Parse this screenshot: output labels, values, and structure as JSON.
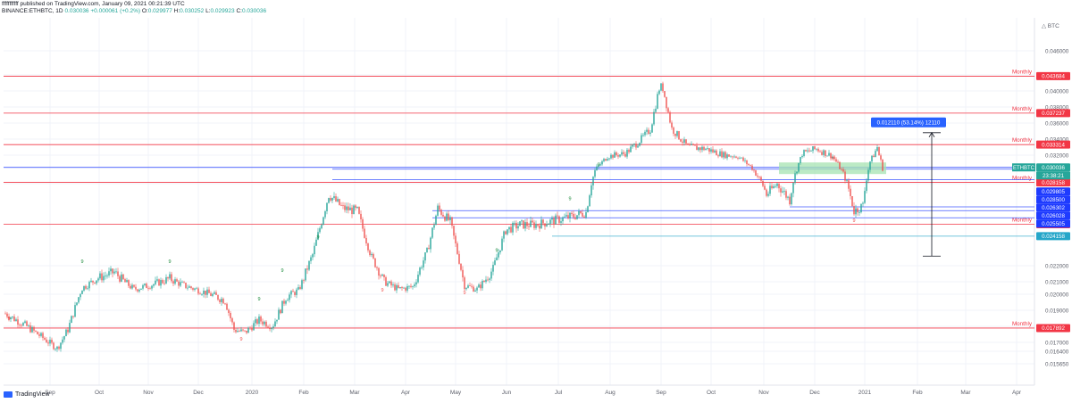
{
  "header": {
    "line1": "fffffffffff published on TradingView.com, January 09, 2021 00:21:39 UTC",
    "symbol": "BINANCE:ETHBTC, 1D",
    "price": "0.030036",
    "change": "+0.000061 (+0.2%)",
    "o_label": "O:",
    "o": "0.029977",
    "h_label": "H:",
    "h": "0.030252",
    "l_label": "L:",
    "l": "0.029923",
    "c_label": "C:",
    "c": "0.030036"
  },
  "footer": {
    "brand": "TradingView"
  },
  "colors": {
    "up": "#26a69a",
    "down": "#ef5350",
    "level": "#f23645",
    "blue_level": "#1e3bff",
    "cyan_level": "#26a6c9",
    "accent": "#2962ff"
  },
  "chart_data": {
    "type": "candlestick",
    "symbol": "ETHBTC",
    "exchange": "BINANCE",
    "interval": "1D",
    "currency": "BTC",
    "y_axis_ticks": [
      "0.046000",
      "0.044000",
      "0.040000",
      "0.038000",
      "0.036000",
      "0.034000",
      "0.032000",
      "0.030000",
      "0.028000",
      "0.022000",
      "0.021000",
      "0.020000",
      "0.019000",
      "0.018000",
      "0.017000",
      "0.016400",
      "0.015650"
    ],
    "x_axis_ticks": [
      "Sep",
      "Oct",
      "Nov",
      "Dec",
      "2020",
      "Feb",
      "Mar",
      "Apr",
      "May",
      "Jun",
      "Jul",
      "Aug",
      "Sep",
      "Oct",
      "Nov",
      "Dec",
      "2021",
      "Feb",
      "Mar",
      "Apr"
    ],
    "horizontal_levels": [
      {
        "price": "0.043684",
        "label": "Monthly",
        "color": "red"
      },
      {
        "price": "0.037237",
        "label": "Monthly",
        "color": "red"
      },
      {
        "price": "0.033314",
        "label": "Monthly",
        "color": "red"
      },
      {
        "price": "0.028158",
        "label": "Monthly",
        "color": "red"
      },
      {
        "price": "0.025035",
        "label": "Monthly",
        "color": "red"
      },
      {
        "price": "0.017892",
        "label": "Monthly",
        "color": "red"
      }
    ],
    "price_labels": [
      {
        "text": "0.030036",
        "kind": "last",
        "color": "#26a69a",
        "price": 0.030036
      },
      {
        "text": "23:38:21",
        "kind": "countdown",
        "color": "#26a69a",
        "price": 0.02958
      },
      {
        "text": "0.029805",
        "kind": "level",
        "color": "#1e3bff",
        "price": 0.029805
      },
      {
        "text": "0.028500",
        "kind": "level",
        "color": "#1e3bff",
        "price": 0.0285
      },
      {
        "text": "0.026302",
        "kind": "level",
        "color": "#1e3bff",
        "price": 0.026302
      },
      {
        "text": "0.026028",
        "kind": "level",
        "color": "#1e3bff",
        "price": 0.026028
      },
      {
        "text": "0.025505",
        "kind": "level",
        "color": "#1e3bff",
        "price": 0.025505
      },
      {
        "text": "0.024158",
        "kind": "level",
        "color": "#26a6c9",
        "price": 0.024158
      }
    ],
    "symbol_tag": "ETHBTC",
    "measure": {
      "text": "0.012110 (53.14%) 12110",
      "from": 0.0227,
      "to": 0.0348
    },
    "annotations": {
      "up_markers": "9",
      "down_markers": "9"
    },
    "grid": true,
    "legend": "none",
    "approximate_daily_closes": "Aug-2019 ~0.0185, Sep-2019 low ~0.0166, Oct-2019 ~0.0215, Dec-2019 ~0.0175, Feb-2020 peak ~0.0275, Apr-2020 ~0.0205, Jun-2020 ~0.0248, Aug-2020 ~0.0345, Sep-2020 peak ~0.0415, Nov-2020 ~0.0265, Dec-2020 ~0.0300, Jan-2021 ~0.0300"
  }
}
